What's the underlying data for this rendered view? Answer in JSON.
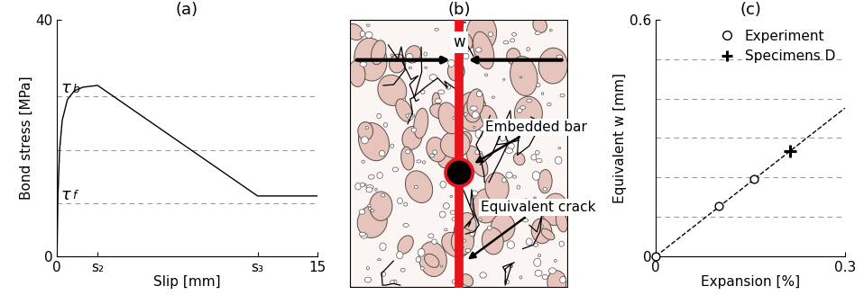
{
  "chart_data": [
    {
      "type": "line",
      "title": "(a)",
      "x_label": "Slip [mm]",
      "y_label": "Bond stress [MPa]",
      "x": [
        0,
        0.05,
        0.15,
        0.3,
        0.6,
        1.0,
        1.5,
        2.34,
        11.57,
        15
      ],
      "values": [
        0,
        10,
        18,
        23,
        26.5,
        28,
        28.6,
        28.9,
        10.2,
        10.2
      ],
      "color": "#000000",
      "xlim": [
        0,
        15
      ],
      "xticks": [
        0,
        {
          "value": 2.34,
          "label": "s₂"
        },
        {
          "value": 11.57,
          "label": "s₃"
        },
        15
      ],
      "ylim": [
        0,
        40
      ],
      "yticks": [
        0,
        40
      ],
      "reference_lines": [
        9,
        18,
        27
      ],
      "annotations": [
        {
          "symbol": "τ",
          "subscript": "b",
          "y": 27
        },
        {
          "symbol": "τ",
          "subscript": "f",
          "y": 9
        }
      ]
    },
    {
      "type": "scatter",
      "title": "(c)",
      "x_label": "Expansion [%]",
      "y_label": "Equivalent w [mm]",
      "series": [
        {
          "name": "Experiment",
          "marker": "o",
          "color": "#000000",
          "x": [
            0,
            0.1,
            0.156
          ],
          "values": [
            0,
            0.128,
            0.195
          ]
        },
        {
          "name": "Specimens D",
          "marker": "+",
          "color": "#000000",
          "x": [
            0.213
          ],
          "values": [
            0.266
          ]
        },
        {
          "type": "line",
          "line_style": "dashed",
          "color": "#000000",
          "x": [
            0,
            0.3
          ],
          "values": [
            0,
            0.376
          ]
        }
      ],
      "xlim": [
        0,
        0.3
      ],
      "xticks": [
        0,
        0.3
      ],
      "ylim": [
        0,
        0.6
      ],
      "yticks": [
        0,
        0.6
      ],
      "reference_lines": [
        0.1,
        0.2,
        0.3,
        0.4,
        0.5
      ],
      "legend": "upper right"
    }
  ],
  "diagram": {
    "title": "(b)",
    "labels": {
      "gap": "w",
      "bar": "Embedded bar",
      "crack": "Equivalent crack"
    }
  }
}
